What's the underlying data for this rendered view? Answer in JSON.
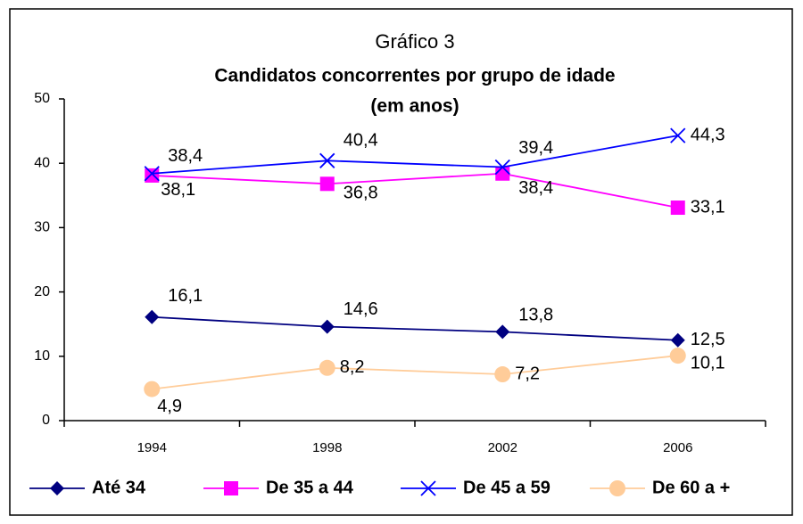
{
  "chart_data": {
    "type": "line",
    "title": "Gráfico 3",
    "subtitle": "Candidatos concorrentes por grupo de idade",
    "subtitle2": "(em anos)",
    "categories": [
      "1994",
      "1998",
      "2002",
      "2006"
    ],
    "series": [
      {
        "name": "Até 34",
        "color": "#000080",
        "marker": "diamond",
        "values": [
          16.1,
          14.6,
          13.8,
          12.5
        ],
        "value_labels": [
          "16,1",
          "14,6",
          "13,8",
          "12,5"
        ]
      },
      {
        "name": "De 35 a 44",
        "color": "#ff00ff",
        "marker": "square",
        "values": [
          38.1,
          36.8,
          38.4,
          33.1
        ],
        "value_labels": [
          "38,1",
          "36,8",
          "38,4",
          "33,1"
        ]
      },
      {
        "name": "De 45 a 59",
        "color": "#0000ff",
        "marker": "x",
        "values": [
          38.4,
          40.4,
          39.4,
          44.3
        ],
        "value_labels": [
          "38,4",
          "40,4",
          "39,4",
          "44,3"
        ]
      },
      {
        "name": "De 60 a +",
        "color": "#ffcc99",
        "marker": "circle",
        "values": [
          4.9,
          8.2,
          7.2,
          10.1
        ],
        "value_labels": [
          "4,9",
          "8,2",
          "7,2",
          "10,1"
        ]
      }
    ],
    "ylim": [
      0,
      50
    ],
    "yticks": [
      0,
      10,
      20,
      30,
      40,
      50
    ],
    "grid": false,
    "legend": "bottom"
  }
}
